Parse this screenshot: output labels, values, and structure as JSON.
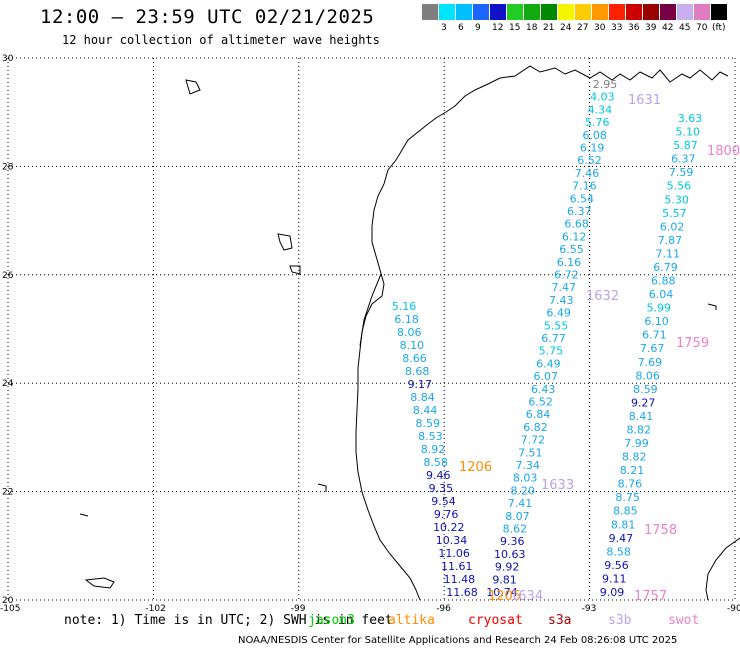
{
  "title": "12:00 – 23:59 UTC 02/21/2025",
  "subtitle": "12 hour collection of altimeter wave heights",
  "scale": {
    "unit": "(ft)",
    "items": [
      {
        "label": "",
        "color": "#7f7f7f"
      },
      {
        "label": "3",
        "color": "#00e5ff"
      },
      {
        "label": "6",
        "color": "#00bfff"
      },
      {
        "label": "9",
        "color": "#1a66ff"
      },
      {
        "label": "12",
        "color": "#1010c8"
      },
      {
        "label": "15",
        "color": "#22cc22"
      },
      {
        "label": "18",
        "color": "#11aa11"
      },
      {
        "label": "21",
        "color": "#008800"
      },
      {
        "label": "24",
        "color": "#f5f500"
      },
      {
        "label": "27",
        "color": "#ffcc00"
      },
      {
        "label": "30",
        "color": "#ff9900"
      },
      {
        "label": "33",
        "color": "#ff2200"
      },
      {
        "label": "36",
        "color": "#cc0000"
      },
      {
        "label": "39",
        "color": "#990000"
      },
      {
        "label": "42",
        "color": "#770044"
      },
      {
        "label": "45",
        "color": "#c8b0f0"
      },
      {
        "label": "70",
        "color": "#e07cc0"
      },
      {
        "label": "",
        "color": "#000000"
      }
    ]
  },
  "axes": {
    "lat": [
      "30",
      "28",
      "26",
      "24",
      "22",
      "20"
    ],
    "lon": [
      "-105",
      "-102",
      "-99",
      "-96",
      "-93",
      "-90"
    ]
  },
  "tracks": [
    {
      "name": "1631",
      "color": "#b9a3ea",
      "labels": [
        "2.95",
        "4.03",
        "4.34",
        "5.76",
        "6.08",
        "6.19",
        "6.52",
        "7.46",
        "7.16",
        "6.54",
        "6.37",
        "6.68",
        "6.12",
        "6.55",
        "6.16",
        "6.72",
        "7.47",
        "7.43",
        "6.49",
        "5.55",
        "6.77",
        "5.75",
        "6.49",
        "6.07",
        "6.43",
        "6.52",
        "6.84",
        "6.82",
        "7.72",
        "7.51",
        "7.34",
        "8.03",
        "8.20",
        "7.41",
        "8.07",
        "8.62",
        "9.36",
        "10.63",
        "9.92",
        "9.81",
        "10.74"
      ]
    },
    {
      "name": "1800",
      "color": "#ee82c8",
      "labels": [
        "3.63",
        "5.10",
        "5.87",
        "6.37",
        "7.59",
        "5.56",
        "5.30",
        "5.57",
        "6.02",
        "7.87",
        "7.11",
        "6.79",
        "6.88",
        "6.04",
        "5.99",
        "6.10",
        "6.71",
        "7.67",
        "7.69",
        "8.06",
        "8.59",
        "9.27",
        "8.41",
        "8.82",
        "7.99",
        "8.82",
        "8.21",
        "8.76",
        "8.75",
        "8.85",
        "8.81",
        "9.47",
        "8.58",
        "9.56",
        "9.11",
        "9.09"
      ]
    },
    {
      "name": "1632",
      "color": "#b9a3ea",
      "labels": []
    },
    {
      "name": "1759",
      "color": "#ee82c8",
      "labels": []
    },
    {
      "name": "1206",
      "color": "#ff8c00",
      "labels": [
        "5.16",
        "6.18",
        "8.06",
        "8.10",
        "8.66",
        "8.68",
        "9.17",
        "8.84",
        "8.44",
        "8.59",
        "8.53",
        "8.92",
        "8.58",
        "9.46",
        "9.35",
        "9.54",
        "9.76",
        "10.22",
        "10.34",
        "11.06",
        "11.61",
        "11.48",
        "11.68"
      ]
    },
    {
      "name": "1633",
      "color": "#b9a3ea",
      "labels": []
    },
    {
      "name": "1758",
      "color": "#ee82c8",
      "labels": []
    },
    {
      "name": "1205",
      "color": "#ff8c00",
      "labels": []
    },
    {
      "name": "1634",
      "color": "#b9a3ea",
      "labels": []
    },
    {
      "name": "1757",
      "color": "#ee82c8",
      "labels": []
    }
  ],
  "note": {
    "prefix": "note: 1) Time is in UTC; 2) SWH is in feet",
    "jason": "jason3",
    "altika": "altika",
    "cryosat": "cryosat",
    "s3a": "s3a",
    "s3b": "s3b",
    "swot": "swot"
  },
  "footer": "NOAA/NESDIS Center for Satellite Applications and Research   24 Feb 08:26:08 UTC 2025"
}
